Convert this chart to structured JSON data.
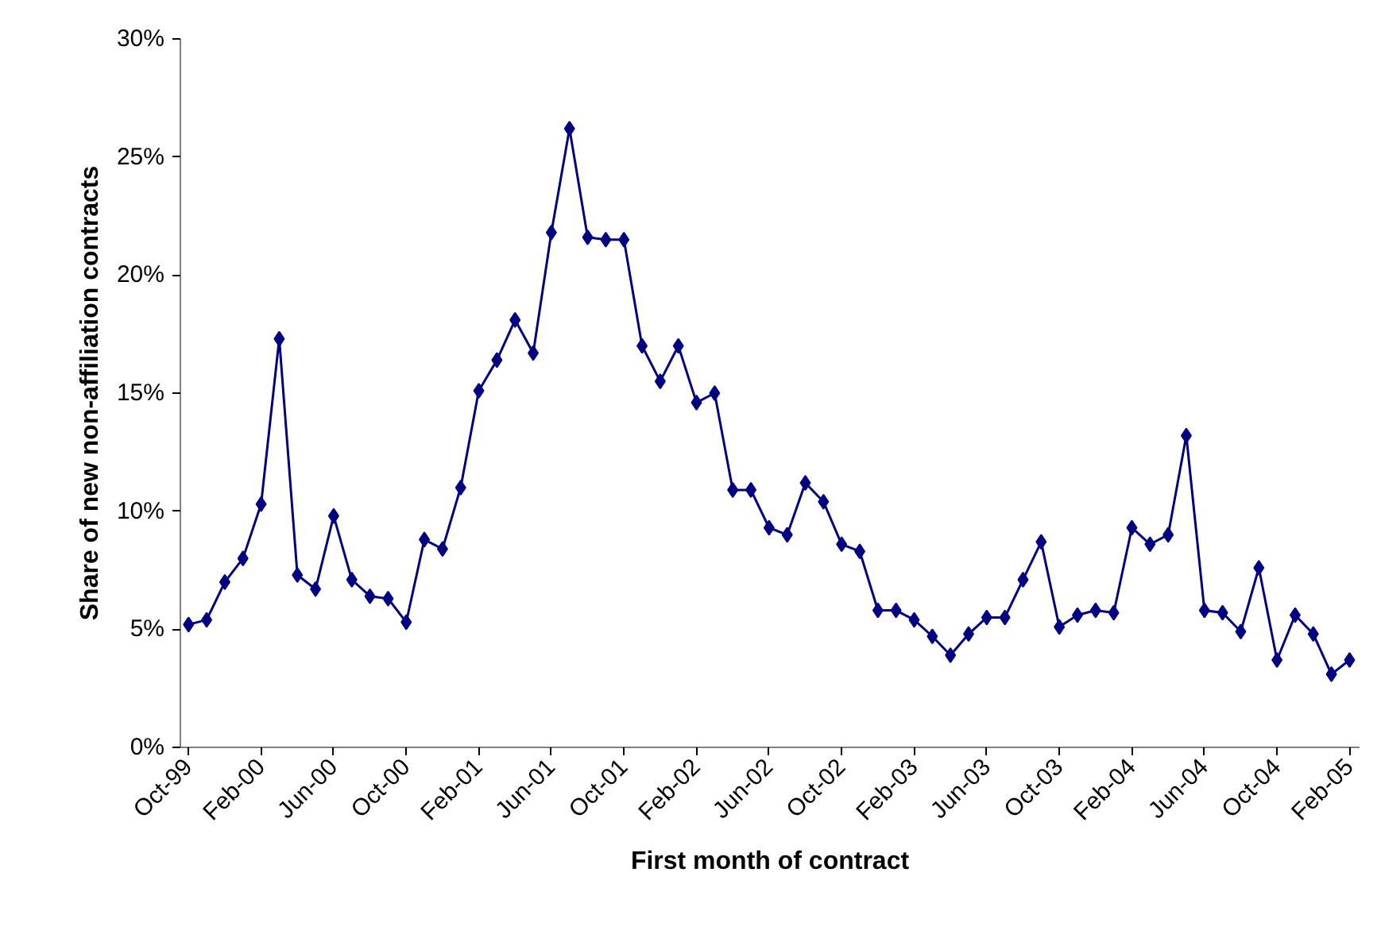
{
  "chart_data": {
    "type": "line",
    "xlabel": "First month of contract",
    "ylabel": "Share of new non-affiliation contracts",
    "categories": [
      "Oct-99",
      null,
      null,
      null,
      "Feb-00",
      null,
      null,
      null,
      "Jun-00",
      null,
      null,
      null,
      "Oct-00",
      null,
      null,
      null,
      "Feb-01",
      null,
      null,
      null,
      "Jun-01",
      null,
      null,
      null,
      "Oct-01",
      null,
      null,
      null,
      "Feb-02",
      null,
      null,
      null,
      "Jun-02",
      null,
      null,
      null,
      "Oct-02",
      null,
      null,
      null,
      "Feb-03",
      null,
      null,
      null,
      "Jun-03",
      null,
      null,
      null,
      "Oct-03",
      null,
      null,
      null,
      "Feb-04",
      null,
      null,
      null,
      "Jun-04",
      null,
      null,
      null,
      "Oct-04",
      null,
      null,
      null,
      "Feb-05"
    ],
    "series": [
      {
        "color": "#000080",
        "values": [
          5.2,
          5.4,
          7.0,
          8.0,
          10.3,
          17.3,
          7.3,
          6.7,
          9.8,
          7.1,
          6.4,
          6.3,
          5.3,
          8.8,
          8.4,
          11.0,
          15.1,
          16.4,
          18.1,
          16.7,
          21.8,
          26.2,
          21.6,
          21.5,
          21.5,
          17.0,
          15.5,
          17.0,
          14.6,
          15.0,
          10.9,
          10.9,
          9.3,
          9.0,
          11.2,
          10.4,
          8.6,
          8.3,
          5.8,
          5.8,
          5.4,
          4.7,
          3.9,
          4.8,
          5.5,
          5.5,
          7.1,
          8.7,
          5.1,
          5.6,
          5.8,
          5.7,
          9.3,
          8.6,
          9.0,
          13.2,
          5.8,
          5.7,
          4.9,
          7.6,
          3.7,
          5.6,
          4.8,
          3.1,
          3.7
        ]
      }
    ],
    "ylim": [
      0,
      30
    ],
    "yticks": [
      {
        "value": 0,
        "label": "0%"
      },
      {
        "value": 5,
        "label": "5%"
      },
      {
        "value": 10,
        "label": "10%"
      },
      {
        "value": 15,
        "label": "15%"
      },
      {
        "value": 20,
        "label": "20%"
      },
      {
        "value": 25,
        "label": "25%"
      },
      {
        "value": 30,
        "label": "30%"
      }
    ],
    "grid": false,
    "marker": "diamond",
    "line_style": "solid"
  }
}
